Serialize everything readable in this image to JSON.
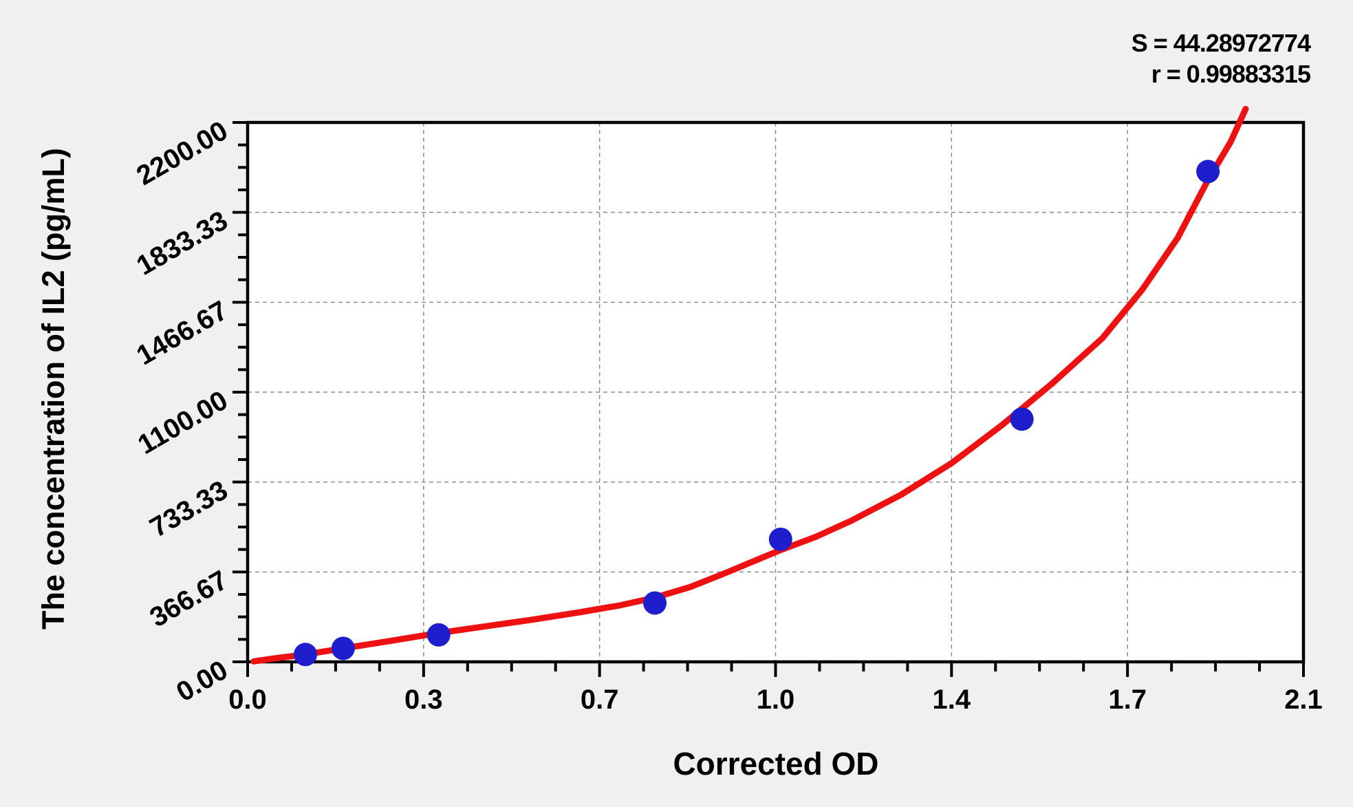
{
  "page": {
    "background_color": "#f0f0f0",
    "plot_background_color": "#ffffff"
  },
  "annotations": {
    "s_value": "S = 44.28972774",
    "r_value": "r = 0.99883315"
  },
  "chart_data": {
    "type": "scatter",
    "title": "",
    "xlabel": "Corrected OD",
    "ylabel": "The concentration of IL2 (pg/mL)",
    "xlim": [
      0,
      2.1
    ],
    "ylim": [
      0,
      2200
    ],
    "x_ticks": {
      "values": [
        0,
        0.35,
        0.7,
        1.05,
        1.4,
        1.75,
        2.1
      ],
      "labels": [
        "0.0",
        "0.3",
        "0.7",
        "1.0",
        "1.4",
        "1.7",
        "2.1"
      ]
    },
    "y_ticks": {
      "values": [
        0,
        366.67,
        733.33,
        1100,
        1466.67,
        1833.33,
        2200
      ],
      "labels": [
        "0.00",
        "366.67",
        "733.33",
        "1100.00",
        "1466.67",
        "1833.33",
        "2200.00"
      ]
    },
    "minor_divisions_per_major": 4,
    "grid": {
      "style": "dashed",
      "on_major_lines": true
    },
    "legend": "none",
    "fit_stats": {
      "S": "44.28972774",
      "r": "0.99883315"
    },
    "series": [
      {
        "name": "standard-points",
        "type": "scatter",
        "color": "#1e1ecd",
        "points": [
          [
            0.115,
            30
          ],
          [
            0.19,
            55
          ],
          [
            0.38,
            110
          ],
          [
            0.81,
            240
          ],
          [
            1.06,
            500
          ],
          [
            1.54,
            990
          ],
          [
            1.91,
            2000
          ]
        ]
      },
      {
        "name": "fitted-curve",
        "type": "line",
        "color": "#ee1111",
        "points": [
          [
            0.012,
            2
          ],
          [
            0.06,
            16
          ],
          [
            0.115,
            30
          ],
          [
            0.19,
            55
          ],
          [
            0.28,
            84
          ],
          [
            0.375,
            116
          ],
          [
            0.47,
            144
          ],
          [
            0.56,
            170
          ],
          [
            0.66,
            202
          ],
          [
            0.74,
            230
          ],
          [
            0.81,
            262
          ],
          [
            0.88,
            305
          ],
          [
            0.95,
            362
          ],
          [
            1.0,
            405
          ],
          [
            1.06,
            456
          ],
          [
            1.13,
            510
          ],
          [
            1.2,
            575
          ],
          [
            1.3,
            682
          ],
          [
            1.4,
            810
          ],
          [
            1.5,
            965
          ],
          [
            1.6,
            1135
          ],
          [
            1.7,
            1320
          ],
          [
            1.78,
            1520
          ],
          [
            1.85,
            1730
          ],
          [
            1.91,
            1965
          ],
          [
            1.955,
            2120
          ],
          [
            1.985,
            2255
          ]
        ]
      }
    ],
    "colors": {
      "curve": "#ee1111",
      "points": "#1e1ecd",
      "grid": "#8c8c8c",
      "frame": "#000000",
      "text": "#000000"
    }
  }
}
